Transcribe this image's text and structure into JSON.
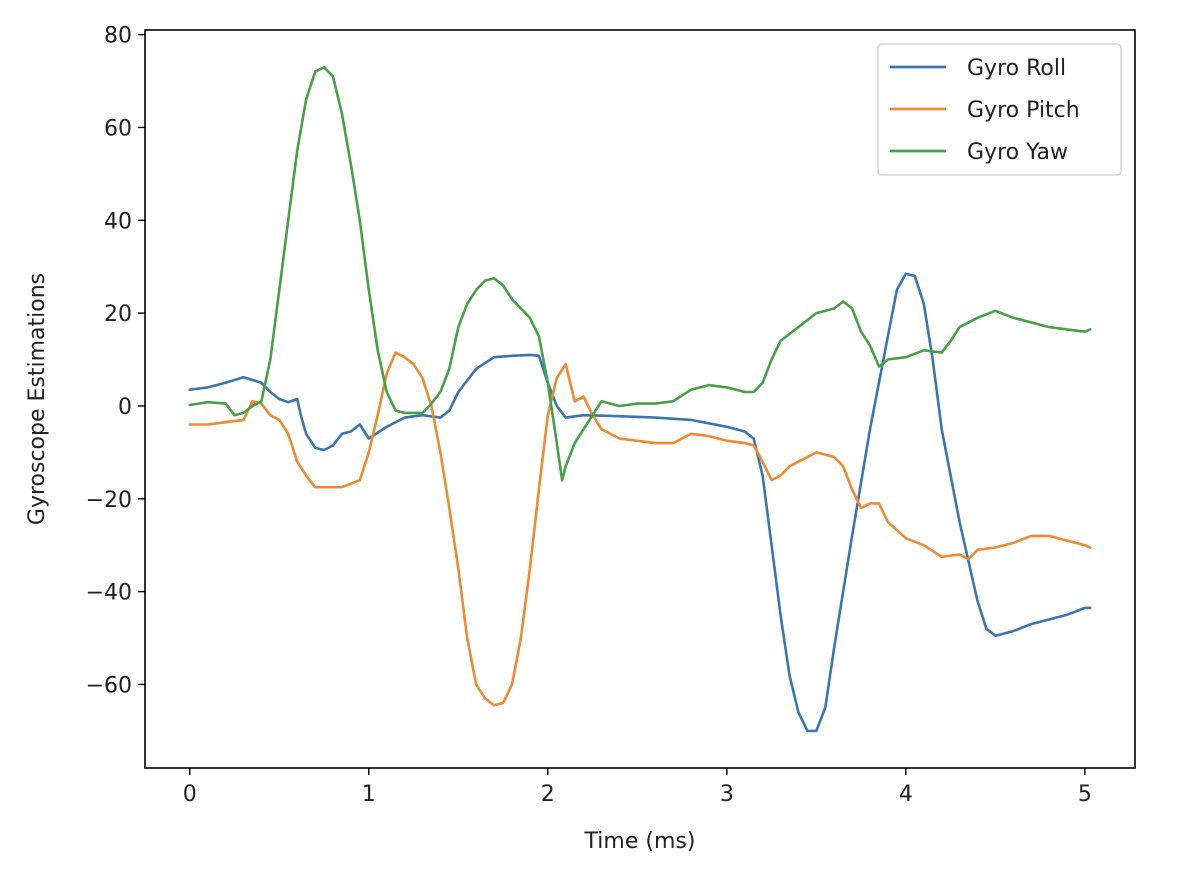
{
  "chart_data": {
    "type": "line",
    "title": "",
    "xlabel": "Time (ms)",
    "ylabel": "Gyroscope Estimations",
    "xlim": [
      -0.25,
      5.28
    ],
    "ylim": [
      -78,
      81
    ],
    "xticks": [
      0,
      1,
      2,
      3,
      4,
      5
    ],
    "yticks": [
      -60,
      -40,
      -20,
      0,
      20,
      40,
      60,
      80
    ],
    "xtick_labels": [
      "0",
      "1",
      "2",
      "3",
      "4",
      "5"
    ],
    "ytick_labels": [
      "−60",
      "−40",
      "−20",
      "0",
      "20",
      "40",
      "60",
      "80"
    ],
    "grid": false,
    "legend_position": "top-right",
    "series": [
      {
        "name": "Gyro Roll",
        "color": "#3a75b0",
        "points": [
          [
            0,
            3.5
          ],
          [
            0.1,
            4
          ],
          [
            0.2,
            5
          ],
          [
            0.3,
            6.2
          ],
          [
            0.4,
            5
          ],
          [
            0.45,
            3
          ],
          [
            0.5,
            1.5
          ],
          [
            0.55,
            0.8
          ],
          [
            0.6,
            1.5
          ],
          [
            0.62,
            -2
          ],
          [
            0.65,
            -6
          ],
          [
            0.7,
            -9
          ],
          [
            0.75,
            -9.5
          ],
          [
            0.8,
            -8.5
          ],
          [
            0.85,
            -6
          ],
          [
            0.9,
            -5.5
          ],
          [
            0.95,
            -4
          ],
          [
            1.0,
            -7
          ],
          [
            1.1,
            -4.5
          ],
          [
            1.2,
            -2.5
          ],
          [
            1.3,
            -2
          ],
          [
            1.4,
            -2.5
          ],
          [
            1.45,
            -1
          ],
          [
            1.5,
            3
          ],
          [
            1.6,
            8
          ],
          [
            1.7,
            10.5
          ],
          [
            1.8,
            10.8
          ],
          [
            1.9,
            11
          ],
          [
            1.95,
            10.8
          ],
          [
            2.0,
            5
          ],
          [
            2.05,
            0
          ],
          [
            2.1,
            -2.5
          ],
          [
            2.2,
            -2
          ],
          [
            2.4,
            -2.2
          ],
          [
            2.6,
            -2.5
          ],
          [
            2.8,
            -3
          ],
          [
            3.0,
            -4.5
          ],
          [
            3.1,
            -5.5
          ],
          [
            3.15,
            -7
          ],
          [
            3.2,
            -15
          ],
          [
            3.25,
            -30
          ],
          [
            3.3,
            -45
          ],
          [
            3.35,
            -58
          ],
          [
            3.4,
            -66
          ],
          [
            3.45,
            -70
          ],
          [
            3.5,
            -70
          ],
          [
            3.55,
            -65
          ],
          [
            3.6,
            -52
          ],
          [
            3.7,
            -28
          ],
          [
            3.8,
            -5
          ],
          [
            3.9,
            15
          ],
          [
            3.95,
            25
          ],
          [
            4.0,
            28.5
          ],
          [
            4.05,
            28
          ],
          [
            4.1,
            22
          ],
          [
            4.15,
            10
          ],
          [
            4.2,
            -5
          ],
          [
            4.3,
            -25
          ],
          [
            4.4,
            -42
          ],
          [
            4.45,
            -48
          ],
          [
            4.5,
            -49.5
          ],
          [
            4.6,
            -48.5
          ],
          [
            4.7,
            -47
          ],
          [
            4.8,
            -46
          ],
          [
            4.9,
            -45
          ],
          [
            5.0,
            -43.5
          ],
          [
            5.03,
            -43.5
          ]
        ]
      },
      {
        "name": "Gyro Pitch",
        "color": "#f08a30",
        "points": [
          [
            0,
            -4
          ],
          [
            0.1,
            -4
          ],
          [
            0.2,
            -3.5
          ],
          [
            0.3,
            -3
          ],
          [
            0.35,
            1
          ],
          [
            0.4,
            0.5
          ],
          [
            0.45,
            -2
          ],
          [
            0.5,
            -3
          ],
          [
            0.55,
            -6
          ],
          [
            0.6,
            -12
          ],
          [
            0.65,
            -15
          ],
          [
            0.7,
            -17.5
          ],
          [
            0.75,
            -17.5
          ],
          [
            0.85,
            -17.5
          ],
          [
            0.95,
            -16
          ],
          [
            1.0,
            -10
          ],
          [
            1.05,
            -2
          ],
          [
            1.1,
            7
          ],
          [
            1.15,
            11.5
          ],
          [
            1.2,
            10.5
          ],
          [
            1.25,
            9
          ],
          [
            1.3,
            6
          ],
          [
            1.35,
            0
          ],
          [
            1.4,
            -10
          ],
          [
            1.45,
            -22
          ],
          [
            1.5,
            -35
          ],
          [
            1.55,
            -50
          ],
          [
            1.6,
            -60
          ],
          [
            1.65,
            -63
          ],
          [
            1.7,
            -64.5
          ],
          [
            1.75,
            -64
          ],
          [
            1.8,
            -60
          ],
          [
            1.85,
            -50
          ],
          [
            1.9,
            -35
          ],
          [
            1.95,
            -18
          ],
          [
            2.0,
            -2
          ],
          [
            2.05,
            6
          ],
          [
            2.1,
            9
          ],
          [
            2.15,
            1
          ],
          [
            2.2,
            2
          ],
          [
            2.25,
            -2
          ],
          [
            2.3,
            -5
          ],
          [
            2.4,
            -7
          ],
          [
            2.5,
            -7.5
          ],
          [
            2.6,
            -8
          ],
          [
            2.7,
            -8
          ],
          [
            2.8,
            -6
          ],
          [
            2.9,
            -6.5
          ],
          [
            3.0,
            -7.5
          ],
          [
            3.1,
            -8
          ],
          [
            3.15,
            -8.5
          ],
          [
            3.2,
            -12
          ],
          [
            3.25,
            -16
          ],
          [
            3.3,
            -15
          ],
          [
            3.35,
            -13
          ],
          [
            3.4,
            -12
          ],
          [
            3.45,
            -11
          ],
          [
            3.5,
            -10
          ],
          [
            3.6,
            -11
          ],
          [
            3.65,
            -13
          ],
          [
            3.7,
            -18
          ],
          [
            3.75,
            -22
          ],
          [
            3.8,
            -21
          ],
          [
            3.85,
            -21
          ],
          [
            3.9,
            -25
          ],
          [
            4.0,
            -28.5
          ],
          [
            4.1,
            -30
          ],
          [
            4.2,
            -32.5
          ],
          [
            4.3,
            -32
          ],
          [
            4.35,
            -33
          ],
          [
            4.4,
            -31
          ],
          [
            4.5,
            -30.5
          ],
          [
            4.6,
            -29.5
          ],
          [
            4.7,
            -28
          ],
          [
            4.8,
            -28
          ],
          [
            4.9,
            -29
          ],
          [
            5.0,
            -30
          ],
          [
            5.03,
            -30.5
          ]
        ]
      },
      {
        "name": "Gyro Yaw",
        "color": "#46a046",
        "points": [
          [
            0,
            0.2
          ],
          [
            0.1,
            0.8
          ],
          [
            0.2,
            0.5
          ],
          [
            0.25,
            -2
          ],
          [
            0.3,
            -1.5
          ],
          [
            0.35,
            0
          ],
          [
            0.4,
            1
          ],
          [
            0.45,
            10
          ],
          [
            0.5,
            25
          ],
          [
            0.55,
            40
          ],
          [
            0.6,
            55
          ],
          [
            0.65,
            66
          ],
          [
            0.7,
            72
          ],
          [
            0.75,
            73
          ],
          [
            0.8,
            71
          ],
          [
            0.85,
            63
          ],
          [
            0.9,
            52
          ],
          [
            0.95,
            40
          ],
          [
            1.0,
            25
          ],
          [
            1.05,
            12
          ],
          [
            1.1,
            3
          ],
          [
            1.15,
            -1
          ],
          [
            1.2,
            -1.5
          ],
          [
            1.25,
            -1.5
          ],
          [
            1.3,
            -1.5
          ],
          [
            1.35,
            0.5
          ],
          [
            1.4,
            3
          ],
          [
            1.45,
            8
          ],
          [
            1.5,
            17
          ],
          [
            1.55,
            22
          ],
          [
            1.6,
            25
          ],
          [
            1.65,
            27
          ],
          [
            1.7,
            27.5
          ],
          [
            1.75,
            26
          ],
          [
            1.8,
            23
          ],
          [
            1.85,
            21
          ],
          [
            1.9,
            19
          ],
          [
            1.95,
            15
          ],
          [
            2.0,
            5
          ],
          [
            2.05,
            -8
          ],
          [
            2.08,
            -16
          ],
          [
            2.1,
            -13
          ],
          [
            2.15,
            -8
          ],
          [
            2.2,
            -5
          ],
          [
            2.25,
            -2
          ],
          [
            2.3,
            1
          ],
          [
            2.4,
            0
          ],
          [
            2.5,
            0.5
          ],
          [
            2.6,
            0.5
          ],
          [
            2.7,
            1
          ],
          [
            2.8,
            3.5
          ],
          [
            2.9,
            4.5
          ],
          [
            3.0,
            4
          ],
          [
            3.1,
            3
          ],
          [
            3.15,
            3
          ],
          [
            3.2,
            5
          ],
          [
            3.25,
            10
          ],
          [
            3.3,
            14
          ],
          [
            3.4,
            17
          ],
          [
            3.5,
            20
          ],
          [
            3.6,
            21
          ],
          [
            3.65,
            22.5
          ],
          [
            3.7,
            21
          ],
          [
            3.75,
            16
          ],
          [
            3.8,
            13
          ],
          [
            3.85,
            8.5
          ],
          [
            3.9,
            10
          ],
          [
            4.0,
            10.5
          ],
          [
            4.1,
            12
          ],
          [
            4.2,
            11.5
          ],
          [
            4.25,
            14
          ],
          [
            4.3,
            17
          ],
          [
            4.4,
            19
          ],
          [
            4.5,
            20.5
          ],
          [
            4.6,
            19
          ],
          [
            4.7,
            18
          ],
          [
            4.8,
            17
          ],
          [
            4.9,
            16.5
          ],
          [
            5.0,
            16
          ],
          [
            5.03,
            16.5
          ]
        ]
      }
    ]
  }
}
